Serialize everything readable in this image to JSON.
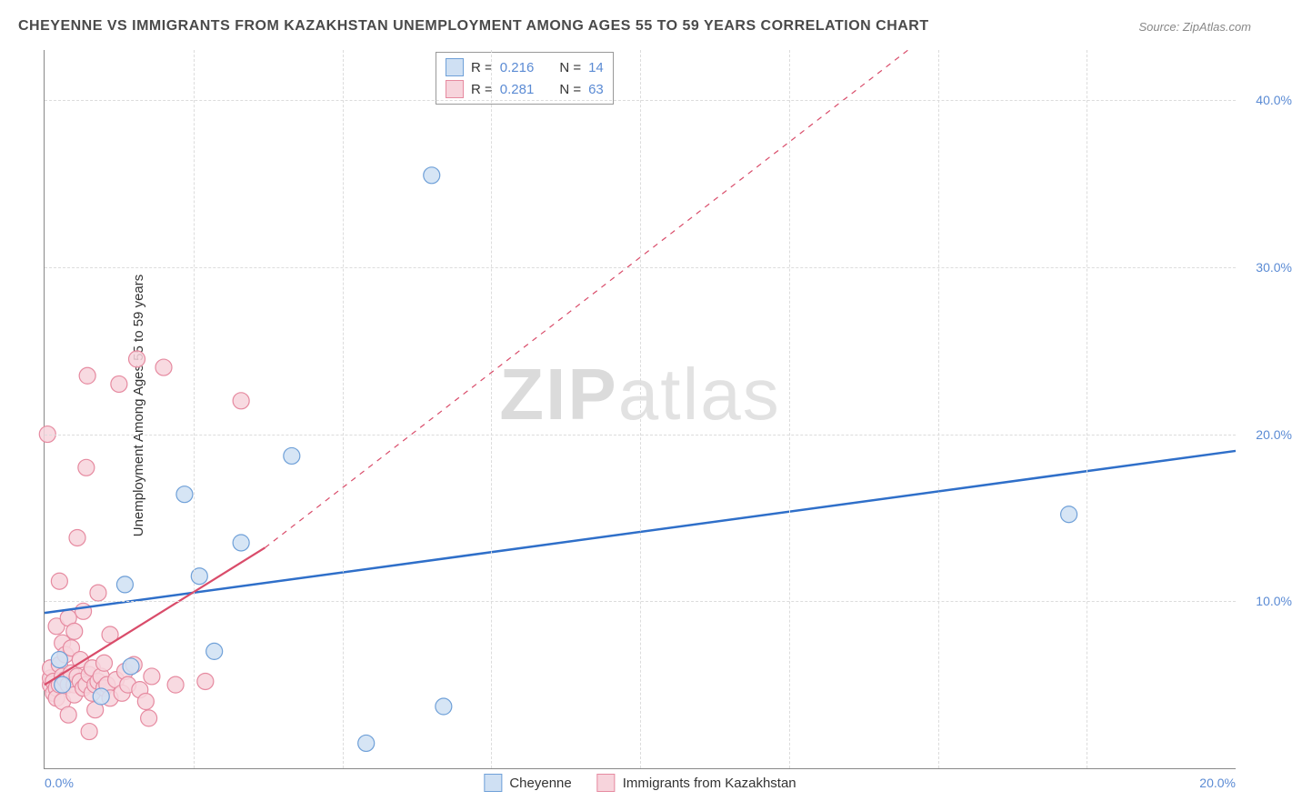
{
  "title": "CHEYENNE VS IMMIGRANTS FROM KAZAKHSTAN UNEMPLOYMENT AMONG AGES 55 TO 59 YEARS CORRELATION CHART",
  "source": "Source: ZipAtlas.com",
  "y_axis_label": "Unemployment Among Ages 55 to 59 years",
  "watermark": "ZIPatlas",
  "chart": {
    "type": "scatter",
    "background_color": "#ffffff",
    "grid_color": "#dcdcdc",
    "axis_color": "#888888",
    "xlim": [
      0,
      20
    ],
    "ylim": [
      0,
      43
    ],
    "x_ticks": [
      0,
      20
    ],
    "x_tick_labels": [
      "0.0%",
      "20.0%"
    ],
    "y_ticks": [
      10,
      20,
      30,
      40
    ],
    "y_tick_labels": [
      "10.0%",
      "20.0%",
      "30.0%",
      "40.0%"
    ],
    "x_minor_gridlines": [
      2.5,
      5,
      7.5,
      10,
      12.5,
      15,
      17.5
    ],
    "y_major_gridlines": [
      10,
      20,
      30,
      40
    ],
    "marker_radius": 9,
    "marker_stroke_width": 1.2,
    "series": [
      {
        "name": "Cheyenne",
        "color_fill": "#cfe0f3",
        "color_stroke": "#6fa0d8",
        "trend_color": "#2f6fc9",
        "trend_style": "solid",
        "trend_width": 2.5,
        "trend_line": {
          "x1": 0,
          "y1": 9.3,
          "x2": 20,
          "y2": 19.0
        },
        "trend_dash": {
          "x1": 0,
          "y1": 9.3,
          "x2": 20,
          "y2": 19.0
        },
        "R": "0.216",
        "N": "14",
        "points": [
          [
            0.25,
            6.5
          ],
          [
            0.3,
            5.0
          ],
          [
            0.95,
            4.3
          ],
          [
            1.35,
            11.0
          ],
          [
            1.45,
            6.1
          ],
          [
            2.35,
            16.4
          ],
          [
            2.6,
            11.5
          ],
          [
            3.3,
            13.5
          ],
          [
            2.85,
            7.0
          ],
          [
            4.15,
            18.7
          ],
          [
            5.4,
            1.5
          ],
          [
            6.7,
            3.7
          ],
          [
            6.5,
            35.5
          ],
          [
            17.2,
            15.2
          ]
        ]
      },
      {
        "name": "Immigrants from Kazakhstan",
        "color_fill": "#f7d4dc",
        "color_stroke": "#e68aa0",
        "trend_color": "#d94c6a",
        "trend_style": "solid",
        "trend_width": 2.2,
        "trend_line": {
          "x1": 0,
          "y1": 5.0,
          "x2": 3.7,
          "y2": 13.2
        },
        "trend_dash": {
          "x1": 3.7,
          "y1": 13.2,
          "x2": 14.5,
          "y2": 43
        },
        "R": "0.281",
        "N": "63",
        "points": [
          [
            0.05,
            20.0
          ],
          [
            0.1,
            5.0
          ],
          [
            0.1,
            5.4
          ],
          [
            0.1,
            6.0
          ],
          [
            0.15,
            5.2
          ],
          [
            0.15,
            4.5
          ],
          [
            0.2,
            4.8
          ],
          [
            0.2,
            8.5
          ],
          [
            0.2,
            4.2
          ],
          [
            0.25,
            5.0
          ],
          [
            0.25,
            6.2
          ],
          [
            0.25,
            11.2
          ],
          [
            0.3,
            5.5
          ],
          [
            0.3,
            7.5
          ],
          [
            0.3,
            4.0
          ],
          [
            0.35,
            5.3
          ],
          [
            0.35,
            6.8
          ],
          [
            0.4,
            5.0
          ],
          [
            0.4,
            3.2
          ],
          [
            0.4,
            9.0
          ],
          [
            0.45,
            5.7
          ],
          [
            0.45,
            7.2
          ],
          [
            0.5,
            5.0
          ],
          [
            0.5,
            4.4
          ],
          [
            0.5,
            8.2
          ],
          [
            0.55,
            5.5
          ],
          [
            0.55,
            13.8
          ],
          [
            0.6,
            5.2
          ],
          [
            0.6,
            6.5
          ],
          [
            0.65,
            4.8
          ],
          [
            0.65,
            9.4
          ],
          [
            0.7,
            5.0
          ],
          [
            0.7,
            18.0
          ],
          [
            0.72,
            23.5
          ],
          [
            0.75,
            5.6
          ],
          [
            0.75,
            2.2
          ],
          [
            0.8,
            4.5
          ],
          [
            0.8,
            6.0
          ],
          [
            0.85,
            5.0
          ],
          [
            0.85,
            3.5
          ],
          [
            0.9,
            5.2
          ],
          [
            0.9,
            10.5
          ],
          [
            0.95,
            5.5
          ],
          [
            1.0,
            4.8
          ],
          [
            1.0,
            6.3
          ],
          [
            1.05,
            5.0
          ],
          [
            1.1,
            4.2
          ],
          [
            1.1,
            8.0
          ],
          [
            1.2,
            5.3
          ],
          [
            1.25,
            23.0
          ],
          [
            1.3,
            4.5
          ],
          [
            1.35,
            5.8
          ],
          [
            1.4,
            5.0
          ],
          [
            1.5,
            6.2
          ],
          [
            1.55,
            24.5
          ],
          [
            1.6,
            4.7
          ],
          [
            1.7,
            4.0
          ],
          [
            1.75,
            3.0
          ],
          [
            1.8,
            5.5
          ],
          [
            2.0,
            24.0
          ],
          [
            2.2,
            5.0
          ],
          [
            2.7,
            5.2
          ],
          [
            3.3,
            22.0
          ]
        ]
      }
    ],
    "legend_top": {
      "rows": [
        {
          "swatch_fill": "#cfe0f3",
          "swatch_stroke": "#6fa0d8",
          "r_label": "R =",
          "r_val": "0.216",
          "n_label": "N =",
          "n_val": "14"
        },
        {
          "swatch_fill": "#f7d4dc",
          "swatch_stroke": "#e68aa0",
          "r_label": "R =",
          "r_val": "0.281",
          "n_label": "N =",
          "n_val": "63"
        }
      ]
    },
    "legend_bottom": [
      {
        "swatch_fill": "#cfe0f3",
        "swatch_stroke": "#6fa0d8",
        "label": "Cheyenne"
      },
      {
        "swatch_fill": "#f7d4dc",
        "swatch_stroke": "#e68aa0",
        "label": "Immigrants from Kazakhstan"
      }
    ]
  }
}
